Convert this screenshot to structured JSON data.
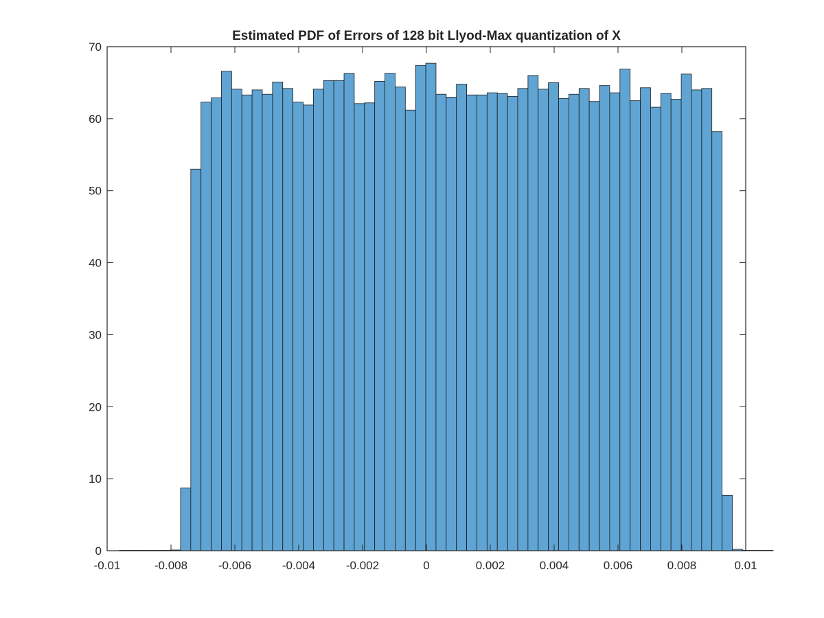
{
  "chart_data": {
    "type": "bar",
    "title": "Estimated PDF of Errors of 128 bit Llyod-Max quantization of X",
    "xlabel": "",
    "ylabel": "",
    "xlim": [
      -0.01,
      0.01
    ],
    "ylim": [
      0,
      70
    ],
    "x_ticks": [
      -0.01,
      -0.008,
      -0.006,
      -0.004,
      -0.002,
      0,
      0.002,
      0.004,
      0.006,
      0.008,
      0.01
    ],
    "x_tick_labels": [
      "-0.01",
      "-0.008",
      "-0.006",
      "-0.004",
      "-0.002",
      "0",
      "0.002",
      "0.004",
      "0.006",
      "0.008",
      "0.01"
    ],
    "y_ticks": [
      0,
      10,
      20,
      30,
      40,
      50,
      60,
      70
    ],
    "y_tick_labels": [
      "0",
      "10",
      "20",
      "30",
      "40",
      "50",
      "60",
      "70"
    ],
    "bin_width": 0.00032,
    "bin_start": -0.00962,
    "values": [
      0.05,
      0.05,
      0.05,
      0.05,
      0.05,
      0.1,
      8.7,
      53.0,
      62.3,
      62.9,
      66.6,
      64.1,
      63.3,
      64.0,
      63.4,
      65.1,
      64.2,
      62.3,
      61.9,
      64.1,
      65.3,
      65.3,
      66.3,
      62.1,
      62.2,
      65.2,
      66.3,
      64.4,
      61.2,
      67.4,
      67.7,
      63.4,
      63.0,
      64.8,
      63.3,
      63.3,
      63.6,
      63.5,
      63.1,
      64.2,
      66.0,
      64.1,
      65.0,
      62.8,
      63.4,
      64.2,
      62.4,
      64.6,
      63.6,
      66.9,
      62.5,
      64.3,
      61.6,
      63.5,
      62.7,
      66.2,
      64.0,
      64.2,
      58.2,
      7.7,
      0.2,
      0.05,
      0.05,
      0.05
    ],
    "bar_color": "#5fa4d3",
    "edge_color": "#1a1a1a",
    "grid": false,
    "legend": "none"
  }
}
